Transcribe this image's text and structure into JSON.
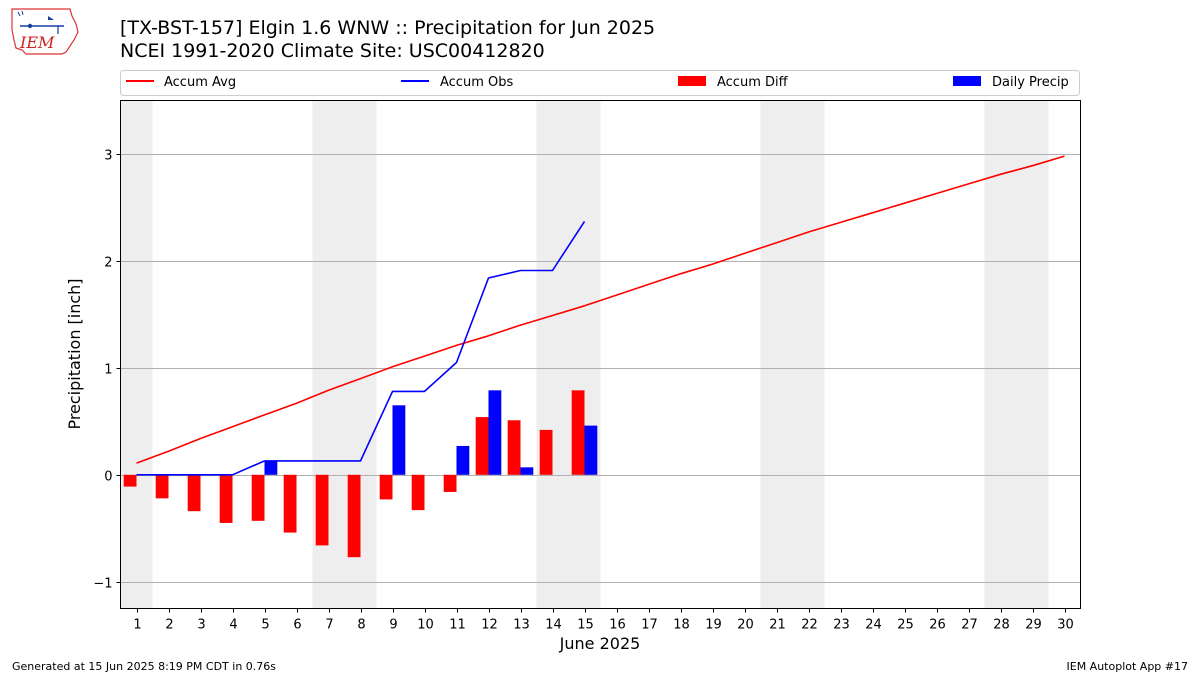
{
  "header": {
    "title_line1": "[TX-BST-157] Elgin 1.6 WNW :: Precipitation for Jun 2025",
    "title_line2": "NCEI 1991-2020 Climate Site: USC00412820",
    "logo_text": "IEM"
  },
  "footer": {
    "left": "Generated at 15 Jun 2025 8:19 PM CDT in 0.76s",
    "right": "IEM Autoplot App #17"
  },
  "colors": {
    "accum_avg": "#ff0000",
    "accum_obs": "#0000ff",
    "accum_diff": "#ff0000",
    "daily_precip": "#0000ff",
    "weekend_shade": "#eeeeee",
    "grid": "#b0b0b0"
  },
  "chart_data": {
    "type": "bar",
    "xlabel": "June 2025",
    "ylabel": "Precipitation [inch]",
    "ylim": [
      -1.25,
      3.5
    ],
    "xlim": [
      0.5,
      30.5
    ],
    "yticks": [
      -1,
      0,
      1,
      2,
      3
    ],
    "ytick_labels": [
      "−1",
      "0",
      "1",
      "2",
      "3"
    ],
    "x": [
      1,
      2,
      3,
      4,
      5,
      6,
      7,
      8,
      9,
      10,
      11,
      12,
      13,
      14,
      15,
      16,
      17,
      18,
      19,
      20,
      21,
      22,
      23,
      24,
      25,
      26,
      27,
      28,
      29,
      30
    ],
    "grid": "y",
    "legend_position": "top",
    "weekend_shading": [
      [
        0.5,
        1.5
      ],
      [
        6.5,
        8.5
      ],
      [
        13.5,
        15.5
      ],
      [
        20.5,
        22.5
      ],
      [
        27.5,
        29.5
      ]
    ],
    "series": [
      {
        "name": "Accum Avg",
        "kind": "line",
        "x": [
          1,
          2,
          3,
          4,
          5,
          6,
          7,
          8,
          9,
          10,
          11,
          12,
          13,
          14,
          15,
          16,
          17,
          18,
          19,
          20,
          21,
          22,
          23,
          24,
          25,
          26,
          27,
          28,
          29,
          30
        ],
        "values": [
          0.11,
          0.22,
          0.34,
          0.45,
          0.56,
          0.67,
          0.79,
          0.9,
          1.01,
          1.11,
          1.21,
          1.3,
          1.4,
          1.49,
          1.58,
          1.68,
          1.78,
          1.88,
          1.97,
          2.07,
          2.17,
          2.27,
          2.36,
          2.45,
          2.54,
          2.63,
          2.72,
          2.81,
          2.89,
          2.98
        ]
      },
      {
        "name": "Accum Obs",
        "kind": "line",
        "x": [
          1,
          2,
          3,
          4,
          5,
          6,
          7,
          8,
          9,
          10,
          11,
          12,
          13,
          14,
          15
        ],
        "values": [
          0,
          0,
          0,
          0,
          0.13,
          0.13,
          0.13,
          0.13,
          0.78,
          0.78,
          1.05,
          1.84,
          1.91,
          1.91,
          2.37
        ]
      },
      {
        "name": "Accum Diff",
        "kind": "bar",
        "x": [
          1,
          2,
          3,
          4,
          5,
          6,
          7,
          8,
          9,
          10,
          11,
          12,
          13,
          14,
          15
        ],
        "values": [
          -0.11,
          -0.22,
          -0.34,
          -0.45,
          -0.43,
          -0.54,
          -0.66,
          -0.77,
          -0.23,
          -0.33,
          -0.16,
          0.54,
          0.51,
          0.42,
          0.79
        ]
      },
      {
        "name": "Daily Precip",
        "kind": "bar",
        "x": [
          1,
          2,
          3,
          4,
          5,
          6,
          7,
          8,
          9,
          10,
          11,
          12,
          13,
          14,
          15
        ],
        "values": [
          0,
          0,
          0,
          0,
          0.13,
          0,
          0,
          0,
          0.65,
          0,
          0.27,
          0.79,
          0.07,
          0,
          0.46
        ]
      }
    ]
  }
}
